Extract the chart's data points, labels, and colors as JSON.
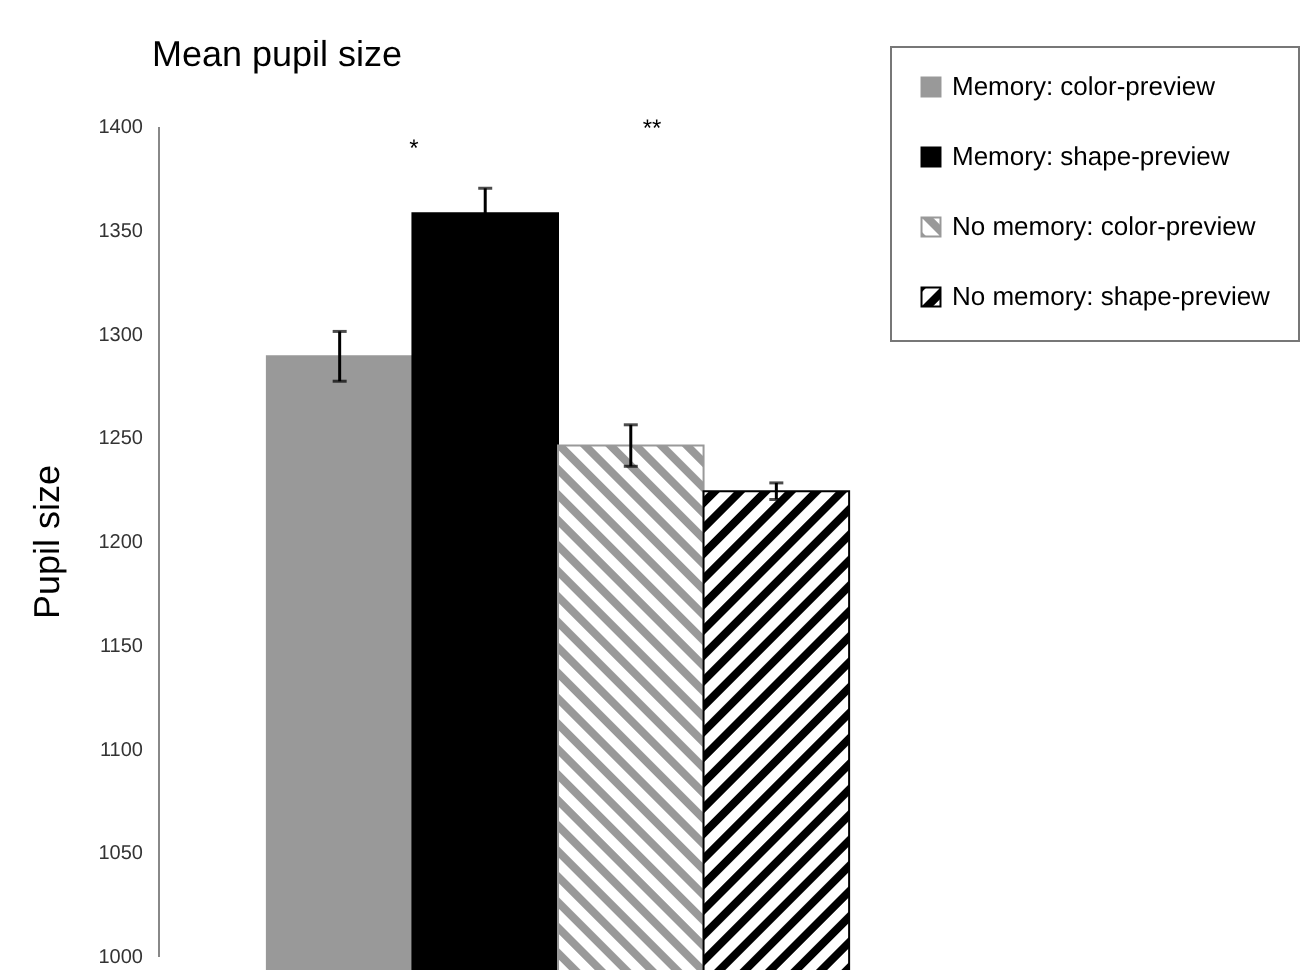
{
  "chart_data": {
    "type": "bar",
    "title": "Mean pupil size",
    "ylabel": "Pupil size",
    "categories": [
      null
    ],
    "series": [
      {
        "name": "Memory: color-preview",
        "color": "#999999",
        "values": [
          1289
        ],
        "errors": [
          12
        ]
      },
      {
        "name": "Memory: shape-preview",
        "color": "#000000",
        "values": [
          1358
        ],
        "errors": [
          12
        ]
      },
      {
        "name": "No memory: color-preview",
        "color": "#999999",
        "values": [
          1246
        ],
        "errors": [
          10
        ]
      },
      {
        "name": "No memory: shape-preview",
        "color": "#000000",
        "values": [
          1224
        ],
        "errors": [
          4
        ]
      }
    ],
    "ylim": [
      1000,
      1400
    ],
    "yticks": [
      1000,
      1050,
      1100,
      1150,
      1200,
      1250,
      1300,
      1350,
      1400
    ],
    "grid": false,
    "legend": "top right",
    "annotations": [
      "*",
      "**"
    ]
  }
}
